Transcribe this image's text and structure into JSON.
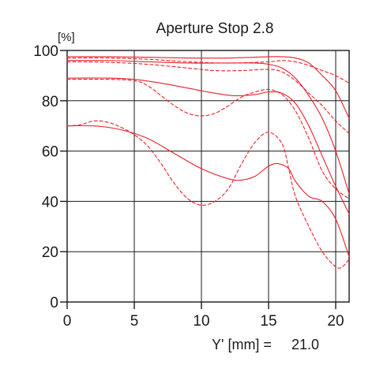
{
  "chart_data": {
    "type": "line",
    "title": "Aperture Stop 2.8",
    "y_unit": "[%]",
    "xlabel": "Y' [mm] =",
    "x_max_label": "21.0",
    "xlim": [
      0,
      21
    ],
    "ylim": [
      0,
      100
    ],
    "x_ticks": [
      0,
      5,
      10,
      15,
      20
    ],
    "y_ticks": [
      0,
      20,
      40,
      60,
      80,
      100
    ],
    "grid": true,
    "legend": "none",
    "line_color": "#e8202a",
    "series": [
      {
        "style": "solid",
        "points": [
          [
            0,
            97.5
          ],
          [
            3,
            97.5
          ],
          [
            6,
            97.3
          ],
          [
            9,
            97
          ],
          [
            12,
            97
          ],
          [
            15,
            97.5
          ],
          [
            16,
            97.5
          ],
          [
            17,
            97
          ],
          [
            18,
            95
          ],
          [
            19,
            90
          ],
          [
            20,
            84
          ],
          [
            21,
            73
          ]
        ]
      },
      {
        "style": "dashed",
        "points": [
          [
            0,
            97
          ],
          [
            3,
            97
          ],
          [
            6,
            96.5
          ],
          [
            9,
            95.5
          ],
          [
            12,
            95
          ],
          [
            15,
            95.5
          ],
          [
            16,
            96
          ],
          [
            17,
            95.5
          ],
          [
            18,
            94
          ],
          [
            19,
            92
          ],
          [
            20,
            90
          ],
          [
            21,
            87
          ]
        ]
      },
      {
        "style": "solid",
        "points": [
          [
            0,
            96
          ],
          [
            3,
            96
          ],
          [
            6,
            95.5
          ],
          [
            9,
            95
          ],
          [
            12,
            95
          ],
          [
            14,
            95
          ],
          [
            15,
            94.5
          ],
          [
            16,
            93
          ],
          [
            17,
            89
          ],
          [
            18,
            82
          ],
          [
            19,
            73
          ],
          [
            20,
            60
          ],
          [
            21,
            43
          ]
        ]
      },
      {
        "style": "dashed",
        "points": [
          [
            0,
            95.5
          ],
          [
            3,
            95.3
          ],
          [
            6,
            94.5
          ],
          [
            9,
            93
          ],
          [
            11,
            92
          ],
          [
            13,
            92
          ],
          [
            15,
            92.5
          ],
          [
            16,
            91.5
          ],
          [
            17,
            88
          ],
          [
            18,
            83
          ],
          [
            19,
            78
          ],
          [
            20,
            72
          ],
          [
            21,
            67
          ]
        ]
      },
      {
        "style": "solid",
        "points": [
          [
            0,
            89
          ],
          [
            3,
            89
          ],
          [
            5,
            88.5
          ],
          [
            7,
            87
          ],
          [
            9,
            85
          ],
          [
            11,
            83
          ],
          [
            12.5,
            82
          ],
          [
            14,
            82.5
          ],
          [
            15,
            83.5
          ],
          [
            16,
            83
          ],
          [
            17,
            79
          ],
          [
            18,
            70
          ],
          [
            19,
            58
          ],
          [
            20,
            46
          ],
          [
            21,
            35
          ]
        ]
      },
      {
        "style": "dashed",
        "points": [
          [
            0,
            88.5
          ],
          [
            3,
            88.5
          ],
          [
            5,
            88
          ],
          [
            6,
            86
          ],
          [
            7,
            82
          ],
          [
            8,
            78
          ],
          [
            9,
            75
          ],
          [
            10,
            74
          ],
          [
            11,
            75
          ],
          [
            12,
            78
          ],
          [
            13,
            81.5
          ],
          [
            14,
            83.5
          ],
          [
            15,
            84.5
          ],
          [
            16,
            82.5
          ],
          [
            17,
            76
          ],
          [
            18,
            65
          ],
          [
            19,
            52
          ],
          [
            20,
            45
          ],
          [
            21,
            41
          ]
        ]
      },
      {
        "style": "solid",
        "points": [
          [
            0,
            70
          ],
          [
            2,
            70
          ],
          [
            4,
            68.5
          ],
          [
            6,
            65
          ],
          [
            8,
            59
          ],
          [
            10,
            53
          ],
          [
            12,
            49
          ],
          [
            13,
            48.5
          ],
          [
            14,
            50
          ],
          [
            15,
            54
          ],
          [
            15.7,
            55
          ],
          [
            16.5,
            53
          ],
          [
            17,
            48
          ],
          [
            18,
            42
          ],
          [
            19,
            40
          ],
          [
            20,
            33
          ],
          [
            21,
            18
          ]
        ]
      },
      {
        "style": "dashed",
        "points": [
          [
            0,
            70
          ],
          [
            1,
            70.5
          ],
          [
            2,
            72
          ],
          [
            3,
            71.5
          ],
          [
            4,
            69.5
          ],
          [
            5,
            66.5
          ],
          [
            6,
            62
          ],
          [
            7,
            55
          ],
          [
            8,
            47
          ],
          [
            9,
            41
          ],
          [
            10,
            38.5
          ],
          [
            11,
            40
          ],
          [
            12,
            45
          ],
          [
            13,
            55
          ],
          [
            14,
            63.5
          ],
          [
            15,
            67.5
          ],
          [
            16,
            63
          ],
          [
            16.5,
            53
          ],
          [
            17,
            42
          ],
          [
            18,
            30
          ],
          [
            19,
            20
          ],
          [
            20,
            14
          ],
          [
            20.5,
            14
          ],
          [
            21,
            17
          ]
        ]
      }
    ]
  }
}
